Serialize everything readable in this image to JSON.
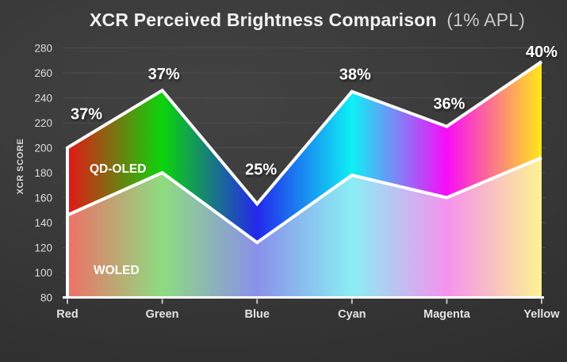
{
  "title": {
    "main": "XCR Perceived Brightness Comparison",
    "suffix": "(1% APL)"
  },
  "chart_data": {
    "type": "area",
    "title": "XCR Perceived Brightness Comparison (1% APL)",
    "ylabel": "XCR SCORE",
    "xlabel": "",
    "categories": [
      "Red",
      "Green",
      "Blue",
      "Cyan",
      "Magenta",
      "Yellow"
    ],
    "series": [
      {
        "name": "QD-OLED",
        "values": [
          200,
          246,
          155,
          245,
          217,
          269
        ]
      },
      {
        "name": "WOLED",
        "values": [
          146,
          180,
          124,
          178,
          160,
          192
        ]
      }
    ],
    "gain_labels": [
      "37%",
      "37%",
      "25%",
      "38%",
      "36%",
      "40%"
    ],
    "ylim": [
      80,
      280
    ],
    "ytick_step": 20,
    "grid": true,
    "legend_position": "labels-inside-areas",
    "colors": {
      "line": "#ffffff",
      "gridline": "#4d4d4d",
      "tick": "#bfbfbf",
      "axis_text": "#dcdcdc",
      "category_text": "#e3e3e3",
      "percent_text": "#ffffff",
      "series_label_text": "#ffffff",
      "saturated_stops": [
        "#e51616",
        "#0cd40c",
        "#2428ec",
        "#0ff0f5",
        "#f80cf8",
        "#ffe818"
      ],
      "pastel_stops": [
        "#ef7168",
        "#8edc80",
        "#8a90ea",
        "#8aeef4",
        "#f592ee",
        "#fcf292"
      ]
    }
  }
}
